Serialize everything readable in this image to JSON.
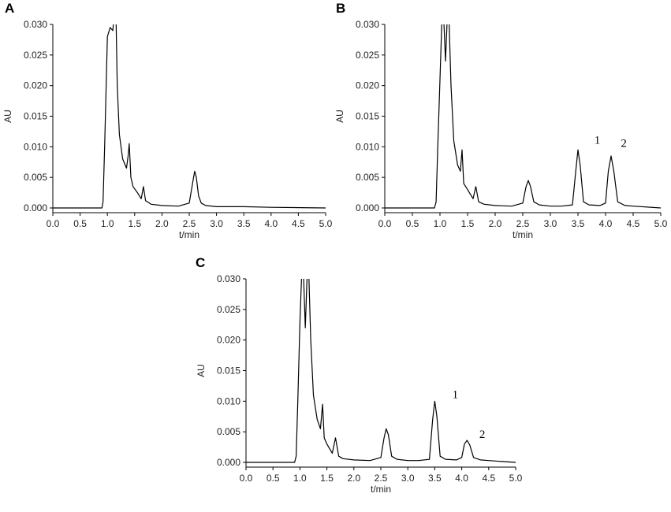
{
  "chart_data": [
    {
      "type": "line",
      "panel": "A",
      "xlabel": "t/min",
      "ylabel": "AU",
      "xlim": [
        0,
        5
      ],
      "ylim": [
        0,
        0.03
      ],
      "xticks": [
        "0.0",
        "0.5",
        "1.0",
        "1.5",
        "2.0",
        "2.5",
        "3.0",
        "3.5",
        "4.0",
        "4.5",
        "5.0"
      ],
      "yticks": [
        "0.000",
        "0.005",
        "0.010",
        "0.015",
        "0.020",
        "0.025",
        "0.030"
      ],
      "peak_labels": [],
      "series": [
        {
          "x": [
            0.0,
            0.5,
            0.9,
            0.92,
            0.95,
            1.0,
            1.05,
            1.1,
            1.15,
            1.18,
            1.22,
            1.28,
            1.35,
            1.38,
            1.4,
            1.43,
            1.47,
            1.55,
            1.62,
            1.66,
            1.7,
            1.8,
            2.0,
            2.3,
            2.5,
            2.56,
            2.6,
            2.63,
            2.67,
            2.72,
            2.8,
            3.0,
            3.5,
            4.0,
            5.0
          ],
          "y": [
            0.0,
            0.0,
            0.0,
            0.001,
            0.01,
            0.028,
            0.0295,
            0.029,
            0.035,
            0.02,
            0.012,
            0.008,
            0.0065,
            0.0085,
            0.0105,
            0.005,
            0.0035,
            0.0025,
            0.0015,
            0.0035,
            0.0012,
            0.0006,
            0.0004,
            0.0003,
            0.0008,
            0.004,
            0.006,
            0.005,
            0.002,
            0.0008,
            0.0004,
            0.0002,
            0.0002,
            0.0001,
            0.0
          ]
        }
      ],
      "grid": false
    },
    {
      "type": "line",
      "panel": "B",
      "xlabel": "t/min",
      "ylabel": "AU",
      "xlim": [
        0,
        5
      ],
      "ylim": [
        0,
        0.03
      ],
      "xticks": [
        "0.0",
        "0.5",
        "1.0",
        "1.5",
        "2.0",
        "2.5",
        "3.0",
        "3.5",
        "4.0",
        "4.5",
        "5.0"
      ],
      "yticks": [
        "0.000",
        "0.005",
        "0.010",
        "0.015",
        "0.020",
        "0.025",
        "0.030"
      ],
      "peak_labels": [
        {
          "text": "1",
          "x": 3.85,
          "y": 0.0105
        },
        {
          "text": "2",
          "x": 4.33,
          "y": 0.01
        }
      ],
      "series": [
        {
          "x": [
            0.0,
            0.5,
            0.9,
            0.93,
            0.96,
            1.0,
            1.05,
            1.1,
            1.15,
            1.2,
            1.25,
            1.32,
            1.37,
            1.4,
            1.43,
            1.5,
            1.6,
            1.65,
            1.7,
            1.8,
            2.0,
            2.3,
            2.5,
            2.56,
            2.6,
            2.64,
            2.7,
            2.8,
            3.0,
            3.2,
            3.4,
            3.46,
            3.5,
            3.54,
            3.6,
            3.7,
            3.9,
            4.0,
            4.05,
            4.1,
            4.15,
            4.22,
            4.35,
            4.5,
            5.0
          ],
          "y": [
            0.0,
            0.0,
            0.0,
            0.001,
            0.01,
            0.021,
            0.035,
            0.024,
            0.035,
            0.02,
            0.011,
            0.007,
            0.006,
            0.0095,
            0.004,
            0.003,
            0.0015,
            0.0035,
            0.001,
            0.0006,
            0.0004,
            0.0003,
            0.0008,
            0.0035,
            0.0045,
            0.0035,
            0.001,
            0.0005,
            0.0003,
            0.0003,
            0.0005,
            0.006,
            0.0095,
            0.007,
            0.001,
            0.0005,
            0.0004,
            0.0008,
            0.006,
            0.0085,
            0.006,
            0.001,
            0.0004,
            0.0003,
            0.0
          ]
        }
      ],
      "grid": false
    },
    {
      "type": "line",
      "panel": "C",
      "xlabel": "t/min",
      "ylabel": "AU",
      "xlim": [
        0,
        5
      ],
      "ylim": [
        0,
        0.03
      ],
      "xticks": [
        "0.0",
        "0.5",
        "1.0",
        "1.5",
        "2.0",
        "2.5",
        "3.0",
        "3.5",
        "4.0",
        "4.5",
        "5.0"
      ],
      "yticks": [
        "0.000",
        "0.005",
        "0.010",
        "0.015",
        "0.020",
        "0.025",
        "0.030"
      ],
      "peak_labels": [
        {
          "text": "1",
          "x": 3.88,
          "y": 0.0105
        },
        {
          "text": "2",
          "x": 4.38,
          "y": 0.004
        }
      ],
      "series": [
        {
          "x": [
            0.0,
            0.5,
            0.9,
            0.93,
            0.96,
            1.0,
            1.05,
            1.1,
            1.15,
            1.2,
            1.25,
            1.32,
            1.38,
            1.42,
            1.45,
            1.5,
            1.6,
            1.66,
            1.72,
            1.8,
            2.0,
            2.3,
            2.5,
            2.56,
            2.6,
            2.64,
            2.7,
            2.8,
            3.0,
            3.2,
            3.4,
            3.46,
            3.5,
            3.54,
            3.6,
            3.7,
            3.9,
            4.0,
            4.05,
            4.1,
            4.15,
            4.22,
            4.35,
            4.5,
            5.0
          ],
          "y": [
            0.0,
            0.0,
            0.0,
            0.001,
            0.01,
            0.023,
            0.035,
            0.022,
            0.035,
            0.02,
            0.011,
            0.007,
            0.0055,
            0.0095,
            0.004,
            0.003,
            0.0015,
            0.004,
            0.001,
            0.0006,
            0.0004,
            0.0003,
            0.0008,
            0.004,
            0.0055,
            0.0045,
            0.001,
            0.0005,
            0.0003,
            0.0003,
            0.0005,
            0.007,
            0.01,
            0.0075,
            0.001,
            0.0005,
            0.0004,
            0.0008,
            0.003,
            0.0036,
            0.0028,
            0.0008,
            0.0004,
            0.0003,
            0.0
          ]
        }
      ],
      "grid": false
    }
  ]
}
